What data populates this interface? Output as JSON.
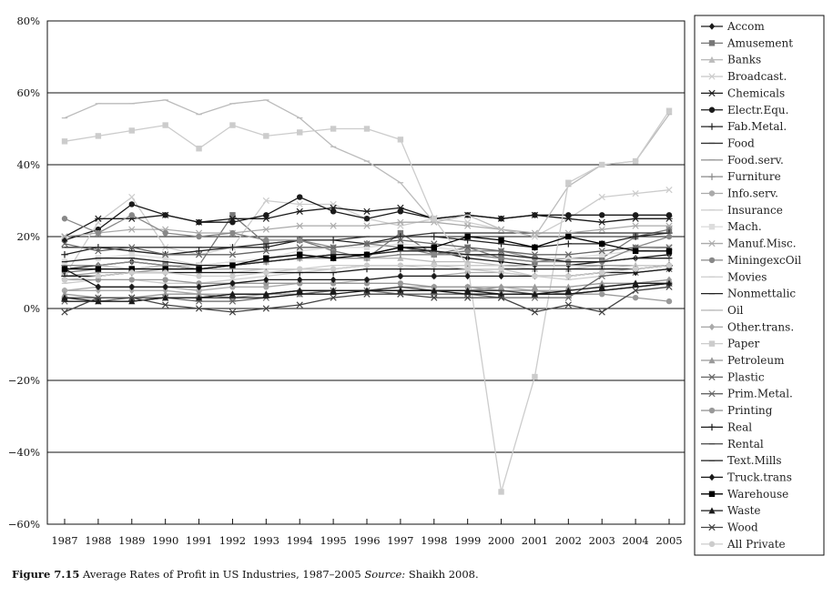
{
  "caption": {
    "figure": "Figure 7.15",
    "title": "Average Rates of Profit in US Industries, 1987–2005",
    "source_label": "Source:",
    "source": "Shaikh 2008."
  },
  "chart_data": {
    "type": "line",
    "x": [
      1987,
      1988,
      1989,
      1990,
      1991,
      1992,
      1993,
      1994,
      1995,
      1996,
      1997,
      1998,
      1999,
      2000,
      2001,
      2002,
      2003,
      2004,
      2005
    ],
    "ylim": [
      -60,
      80
    ],
    "yticks": [
      80,
      60,
      40,
      20,
      0,
      -20,
      -40,
      -60
    ],
    "ytick_labels": [
      "80%",
      "60%",
      "40%",
      "20%",
      "0%",
      "−20%",
      "−40%",
      "−60%"
    ],
    "grid": true,
    "legend_position": "right",
    "series": [
      {
        "name": "Accom",
        "color": "#1a1a1a",
        "marker": "diamond",
        "values": [
          11,
          12,
          13,
          12,
          11,
          12,
          13,
          14,
          15,
          15,
          17,
          16,
          14,
          13,
          12,
          12,
          13,
          14,
          15
        ]
      },
      {
        "name": "Amusement",
        "color": "#777777",
        "marker": "square",
        "values": [
          10,
          11,
          11,
          12,
          12,
          26,
          18,
          19,
          16,
          14,
          21,
          15,
          17,
          14,
          13,
          14,
          14,
          20,
          22
        ]
      },
      {
        "name": "Banks",
        "color": "#bbbbbb",
        "marker": "triangle",
        "values": [
          12,
          12,
          11,
          12,
          12,
          13,
          13,
          14,
          14,
          14,
          14,
          13,
          13,
          12,
          11,
          11,
          12,
          12,
          12
        ]
      },
      {
        "name": "Broadcast.",
        "color": "#cccccc",
        "marker": "x",
        "values": [
          9,
          24,
          31,
          17,
          15,
          17,
          30,
          29,
          29,
          25,
          23,
          25,
          24,
          22,
          20,
          25,
          31,
          32,
          33
        ]
      },
      {
        "name": "Chemicals",
        "color": "#1a1a1a",
        "marker": "star",
        "values": [
          20,
          25,
          25,
          26,
          24,
          25,
          25,
          27,
          28,
          27,
          28,
          25,
          26,
          25,
          26,
          25,
          24,
          25,
          25
        ]
      },
      {
        "name": "Electr.Equ.",
        "color": "#1a1a1a",
        "marker": "circle",
        "values": [
          19,
          22,
          29,
          26,
          24,
          24,
          26,
          31,
          27,
          25,
          27,
          25,
          26,
          25,
          26,
          26,
          26,
          26,
          26
        ]
      },
      {
        "name": "Fab.Metal.",
        "color": "#222222",
        "marker": "plus",
        "values": [
          15,
          17,
          16,
          15,
          16,
          17,
          17,
          19,
          19,
          18,
          20,
          20,
          19,
          18,
          17,
          18,
          18,
          20,
          21
        ]
      },
      {
        "name": "Food",
        "color": "#333333",
        "marker": "dash",
        "values": [
          17,
          17,
          17,
          17,
          17,
          17,
          18,
          19,
          19,
          20,
          20,
          21,
          21,
          21,
          21,
          21,
          21,
          21,
          21
        ]
      },
      {
        "name": "Food.serv.",
        "color": "#999999",
        "marker": "dash",
        "values": [
          9,
          10,
          10,
          11,
          11,
          11,
          11,
          11,
          11,
          12,
          12,
          12,
          12,
          12,
          12,
          12,
          12,
          12,
          12
        ]
      },
      {
        "name": "Furniture",
        "color": "#888888",
        "marker": "plus",
        "values": [
          12,
          12,
          13,
          12,
          11,
          12,
          13,
          14,
          14,
          14,
          15,
          15,
          15,
          14,
          13,
          13,
          13,
          14,
          14
        ]
      },
      {
        "name": "Info.serv.",
        "color": "#aaaaaa",
        "marker": "circle",
        "values": [
          5,
          6,
          6,
          6,
          5,
          6,
          6,
          7,
          7,
          8,
          9,
          9,
          10,
          10,
          9,
          9,
          10,
          11,
          12
        ]
      },
      {
        "name": "Insurance",
        "color": "#cccccc",
        "marker": "dash",
        "values": [
          7,
          8,
          8,
          7,
          7,
          8,
          9,
          10,
          11,
          12,
          12,
          11,
          11,
          10,
          9,
          8,
          9,
          10,
          11
        ]
      },
      {
        "name": "Mach.",
        "color": "#dddddd",
        "marker": "square",
        "values": [
          13,
          14,
          15,
          14,
          12,
          13,
          14,
          16,
          17,
          17,
          18,
          17,
          16,
          16,
          14,
          14,
          15,
          16,
          17
        ]
      },
      {
        "name": "Manuf.Misc.",
        "color": "#aaaaaa",
        "marker": "star",
        "values": [
          20,
          21,
          22,
          22,
          21,
          21,
          22,
          23,
          23,
          23,
          24,
          24,
          23,
          22,
          21,
          21,
          22,
          23,
          23
        ]
      },
      {
        "name": "MiningexcOil",
        "color": "#888888",
        "marker": "circle",
        "values": [
          25,
          21,
          26,
          21,
          20,
          21,
          19,
          19,
          17,
          18,
          17,
          15,
          16,
          16,
          14,
          13,
          13,
          17,
          20
        ]
      },
      {
        "name": "Movies",
        "color": "#cccccc",
        "marker": "dash",
        "values": [
          9,
          9,
          10,
          10,
          10,
          10,
          11,
          11,
          12,
          12,
          12,
          12,
          12,
          12,
          11,
          11,
          11,
          12,
          12
        ]
      },
      {
        "name": "Nonmettalic",
        "color": "#222222",
        "marker": "dash",
        "values": [
          13,
          14,
          14,
          13,
          12,
          12,
          13,
          14,
          15,
          15,
          16,
          16,
          15,
          15,
          14,
          13,
          13,
          14,
          14
        ]
      },
      {
        "name": "Oil",
        "color": "#bbbbbb",
        "marker": "dash",
        "values": [
          53,
          57,
          57,
          58,
          54,
          57,
          58,
          53,
          45,
          41,
          35,
          24,
          26,
          22,
          20,
          34,
          40,
          41,
          54
        ]
      },
      {
        "name": "Other.trans.",
        "color": "#aaaaaa",
        "marker": "diamond",
        "values": [
          5,
          5,
          5,
          5,
          4,
          4,
          4,
          5,
          5,
          5,
          6,
          6,
          6,
          6,
          5,
          5,
          6,
          7,
          8
        ]
      },
      {
        "name": "Paper",
        "color": "#cccccc",
        "marker": "square",
        "values": [
          46.5,
          48,
          49.5,
          51,
          44.5,
          51,
          48,
          49,
          50,
          50,
          47,
          25,
          12,
          -51,
          -19,
          35,
          40,
          41,
          55
        ]
      },
      {
        "name": "Petroleum",
        "color": "#999999",
        "marker": "triangle",
        "values": [
          4,
          3,
          3,
          4,
          4,
          3,
          4,
          4,
          5,
          5,
          5,
          5,
          5,
          6,
          6,
          6,
          7,
          7,
          8
        ]
      },
      {
        "name": "Plastic",
        "color": "#666666",
        "marker": "x",
        "values": [
          18,
          16,
          17,
          15,
          15,
          15,
          16,
          17,
          17,
          18,
          19,
          18,
          17,
          16,
          15,
          15,
          16,
          17,
          17
        ]
      },
      {
        "name": "Prim.Metal.",
        "color": "#666666",
        "marker": "star",
        "values": [
          2,
          2,
          3,
          3,
          2,
          2,
          3,
          4,
          5,
          5,
          4,
          4,
          4,
          3,
          3,
          3,
          9,
          10,
          11
        ]
      },
      {
        "name": "Printing",
        "color": "#999999",
        "marker": "circle",
        "values": [
          8,
          8,
          8,
          8,
          7,
          7,
          7,
          7,
          7,
          7,
          7,
          6,
          6,
          5,
          5,
          4,
          4,
          3,
          2
        ]
      },
      {
        "name": "Real",
        "color": "#1a1a1a",
        "marker": "plus",
        "values": [
          9,
          9,
          10,
          10,
          10,
          10,
          10,
          10,
          10,
          11,
          11,
          11,
          11,
          11,
          11,
          11,
          11,
          11,
          12
        ]
      },
      {
        "name": "Rental",
        "color": "#444444",
        "marker": "dash",
        "values": [
          3,
          3,
          3,
          3,
          3,
          4,
          4,
          5,
          5,
          5,
          6,
          5,
          5,
          5,
          4,
          4,
          5,
          6,
          7
        ]
      },
      {
        "name": "Text.Mills",
        "color": "#1a1a1a",
        "marker": "dash",
        "values": [
          2,
          2,
          2,
          3,
          3,
          3,
          3,
          4,
          4,
          5,
          5,
          5,
          4,
          4,
          4,
          4,
          5,
          6,
          7
        ]
      },
      {
        "name": "Truck.trans",
        "color": "#1a1a1a",
        "marker": "diamond",
        "values": [
          11,
          6,
          6,
          6,
          6,
          7,
          8,
          8,
          8,
          8,
          9,
          9,
          9,
          9,
          9,
          9,
          10,
          10,
          11
        ]
      },
      {
        "name": "Warehouse",
        "color": "#000000",
        "marker": "square",
        "values": [
          11,
          11,
          11,
          11,
          11,
          12,
          14,
          15,
          14,
          15,
          17,
          17,
          20,
          19,
          17,
          20,
          18,
          16,
          16
        ]
      },
      {
        "name": "Waste",
        "color": "#1a1a1a",
        "marker": "triangle",
        "values": [
          3,
          2,
          2,
          3,
          3,
          4,
          4,
          5,
          5,
          5,
          5,
          5,
          5,
          4,
          4,
          5,
          6,
          7,
          7
        ]
      },
      {
        "name": "Wood",
        "color": "#444444",
        "marker": "x",
        "values": [
          -1,
          3,
          3,
          1,
          0,
          -1,
          0,
          1,
          3,
          4,
          4,
          3,
          3,
          3,
          -1,
          1,
          -1,
          5,
          6
        ]
      },
      {
        "name": "All Private",
        "color": "#cccccc",
        "marker": "circle",
        "values": [
          8,
          9,
          10,
          10,
          9,
          9,
          10,
          11,
          11,
          12,
          12,
          12,
          11,
          11,
          9,
          9,
          10,
          11,
          12
        ]
      }
    ]
  }
}
